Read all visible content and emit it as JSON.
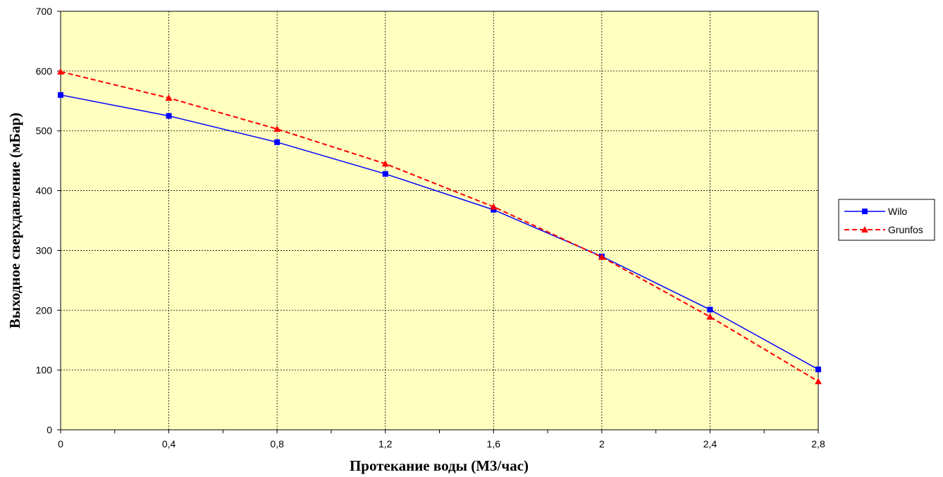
{
  "chart_data": {
    "type": "line",
    "title": "",
    "xlabel": "Протекание воды (М3/час)",
    "ylabel": "Выходное сверхдавление (мБар)",
    "x_ticks": [
      "0",
      "0,4",
      "0,8",
      "1,2",
      "1,6",
      "2",
      "2,4",
      "2,8"
    ],
    "y_ticks": [
      "0",
      "100",
      "200",
      "300",
      "400",
      "500",
      "600",
      "700"
    ],
    "xlim": [
      0,
      2.8
    ],
    "ylim": [
      0,
      700
    ],
    "grid": true,
    "legend_position": "right",
    "plot_background": "#ffffc0",
    "series": [
      {
        "name": "Wilo",
        "color": "#0000ff",
        "line_style": "solid",
        "marker": "square",
        "x": [
          0,
          0.4,
          0.8,
          1.2,
          1.6,
          2.0,
          2.4,
          2.8
        ],
        "y": [
          560,
          525,
          481,
          428,
          368,
          290,
          201,
          101
        ]
      },
      {
        "name": "Grunfos",
        "color": "#ff0000",
        "line_style": "dashed",
        "marker": "triangle",
        "x": [
          0,
          0.4,
          0.8,
          1.2,
          1.6,
          2.0,
          2.4,
          2.8
        ],
        "y": [
          599,
          555,
          503,
          445,
          373,
          289,
          189,
          81
        ]
      }
    ]
  }
}
